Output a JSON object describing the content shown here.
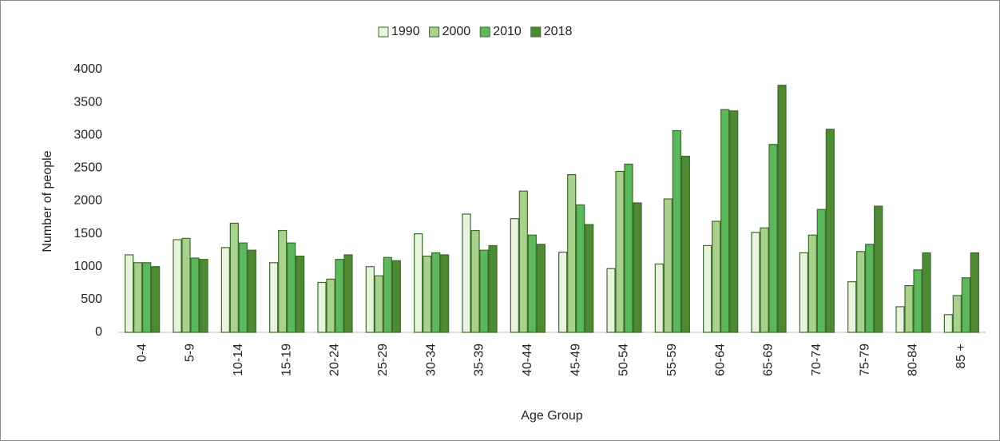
{
  "chart_data": {
    "type": "bar",
    "categories": [
      "0-4",
      "5-9",
      "10-14",
      "15-19",
      "20-24",
      "25-29",
      "30-34",
      "35-39",
      "40-44",
      "45-49",
      "50-54",
      "55-59",
      "60-64",
      "65-69",
      "70-74",
      "75-79",
      "80-84",
      "85 +"
    ],
    "series": [
      {
        "name": "1990",
        "color": "#e8f4de",
        "values": [
          1180,
          1410,
          1290,
          1060,
          760,
          1000,
          1500,
          1800,
          1730,
          1220,
          970,
          1040,
          1320,
          1520,
          1210,
          770,
          390,
          270
        ]
      },
      {
        "name": "2000",
        "color": "#a9d18e",
        "values": [
          1060,
          1430,
          1660,
          1550,
          810,
          860,
          1160,
          1550,
          2150,
          2400,
          2450,
          2030,
          1690,
          1590,
          1480,
          1230,
          710,
          560
        ]
      },
      {
        "name": "2010",
        "color": "#5cb85c",
        "values": [
          1060,
          1130,
          1360,
          1360,
          1110,
          1140,
          1210,
          1250,
          1480,
          1940,
          2560,
          3070,
          3390,
          2860,
          1870,
          1340,
          950,
          830
        ]
      },
      {
        "name": "2018",
        "color": "#4e8a34",
        "values": [
          1000,
          1110,
          1250,
          1160,
          1180,
          1090,
          1180,
          1320,
          1340,
          1640,
          1970,
          2680,
          3370,
          3760,
          3090,
          1920,
          1210,
          1210
        ]
      }
    ],
    "x_label": "Age Group",
    "y_label": "Number of people",
    "ylim": [
      0,
      4000
    ],
    "yticks": [
      0,
      500,
      1000,
      1500,
      2000,
      2500,
      3000,
      3500,
      4000
    ],
    "grid": false,
    "legend": "top"
  }
}
